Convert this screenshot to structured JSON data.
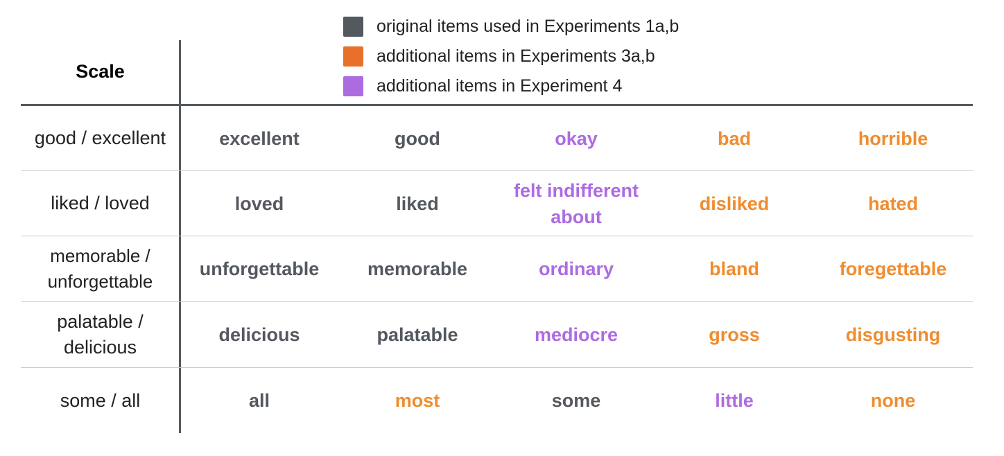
{
  "colors": {
    "original": "#54585f",
    "exp3": "#f08c2e",
    "exp4": "#ad6be2",
    "swatch_exp3": "#e8702a"
  },
  "legend": [
    {
      "label": "original items used in Experiments 1a,b",
      "group": "original"
    },
    {
      "label": "additional items in Experiments 3a,b",
      "group": "exp3"
    },
    {
      "label": "additional items in Experiment 4",
      "group": "exp4"
    }
  ],
  "table": {
    "header": "Scale",
    "rows": [
      {
        "scale": "good / excellent",
        "items": [
          {
            "text": "excellent",
            "group": "original"
          },
          {
            "text": "good",
            "group": "original"
          },
          {
            "text": "okay",
            "group": "exp4"
          },
          {
            "text": "bad",
            "group": "exp3"
          },
          {
            "text": "horrible",
            "group": "exp3"
          }
        ]
      },
      {
        "scale": "liked / loved",
        "items": [
          {
            "text": "loved",
            "group": "original"
          },
          {
            "text": "liked",
            "group": "original"
          },
          {
            "text": "felt indifferent about",
            "group": "exp4"
          },
          {
            "text": "disliked",
            "group": "exp3"
          },
          {
            "text": "hated",
            "group": "exp3"
          }
        ]
      },
      {
        "scale": "memorable / unforgettable",
        "items": [
          {
            "text": "unforgettable",
            "group": "original"
          },
          {
            "text": "memorable",
            "group": "original"
          },
          {
            "text": "ordinary",
            "group": "exp4"
          },
          {
            "text": "bland",
            "group": "exp3"
          },
          {
            "text": "foregettable",
            "group": "exp3"
          }
        ]
      },
      {
        "scale": "palatable / delicious",
        "items": [
          {
            "text": "delicious",
            "group": "original"
          },
          {
            "text": "palatable",
            "group": "original"
          },
          {
            "text": "mediocre",
            "group": "exp4"
          },
          {
            "text": "gross",
            "group": "exp3"
          },
          {
            "text": "disgusting",
            "group": "exp3"
          }
        ]
      },
      {
        "scale": "some / all",
        "items": [
          {
            "text": "all",
            "group": "original"
          },
          {
            "text": "most",
            "group": "exp3"
          },
          {
            "text": "some",
            "group": "original"
          },
          {
            "text": "little",
            "group": "exp4"
          },
          {
            "text": "none",
            "group": "exp3"
          }
        ]
      }
    ]
  }
}
